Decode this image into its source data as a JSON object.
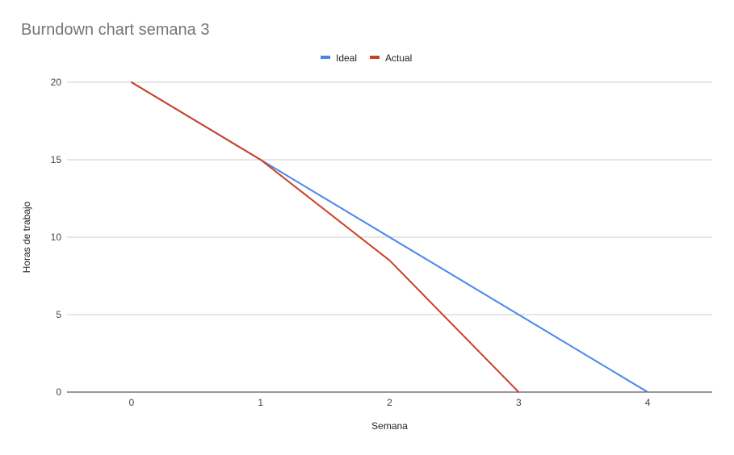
{
  "chart_data": {
    "type": "line",
    "title": "Burndown chart semana 3",
    "xlabel": "Semana",
    "ylabel": "Horas de trabajo",
    "x": [
      0,
      1,
      2,
      3,
      4
    ],
    "x_tick_labels": [
      "0",
      "1",
      "2",
      "3",
      "4"
    ],
    "y_tick_labels": [
      "0",
      "5",
      "10",
      "15",
      "20"
    ],
    "y_ticks": [
      0,
      5,
      10,
      15,
      20
    ],
    "ylim": [
      0,
      20
    ],
    "xlim": [
      -0.5,
      4.5
    ],
    "grid": true,
    "legend_position": "top",
    "series": [
      {
        "name": "Ideal",
        "color": "#4a86e8",
        "x": [
          0,
          1,
          2,
          3,
          4
        ],
        "values": [
          20,
          15,
          10,
          5,
          0
        ]
      },
      {
        "name": "Actual",
        "color": "#cc4125",
        "x": [
          0,
          1,
          2,
          3
        ],
        "values": [
          20,
          15,
          8.5,
          0
        ]
      }
    ]
  }
}
